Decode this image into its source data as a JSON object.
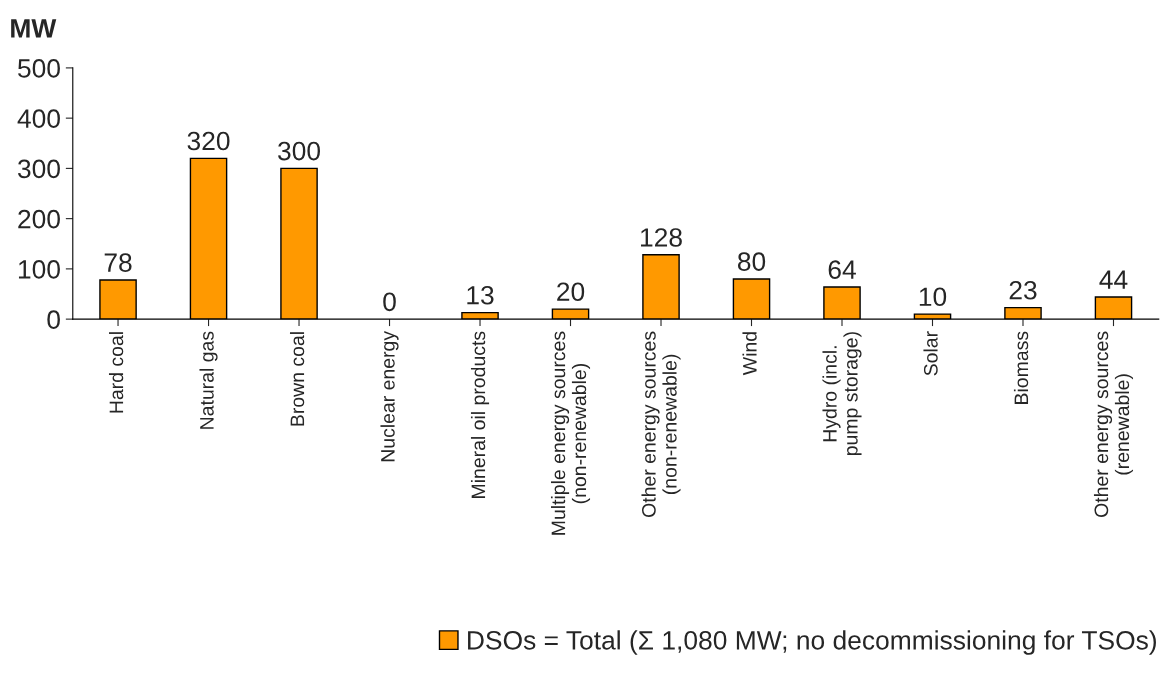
{
  "chart_data": {
    "type": "bar",
    "ylabel": "MW",
    "categories": [
      "Hard coal",
      "Natural gas",
      "Brown coal",
      "Nuclear energy",
      "Mineral oil products",
      "Multiple energy sources\n(non-renewable)",
      "Other energy sources\n(non-renewable)",
      "Wind",
      "Hydro (incl.\npump storage)",
      "Solar",
      "Biomass",
      "Other energy sources\n(renewable)"
    ],
    "series": [
      {
        "name": "DSOs = Total (Σ 1,080 MW; no decommissioning for TSOs)",
        "color": "#ff9900",
        "values": [
          78,
          320,
          300,
          0,
          13,
          20,
          128,
          80,
          64,
          10,
          23,
          44
        ]
      }
    ],
    "ylim": [
      0,
      500
    ],
    "yticks": [
      0,
      100,
      200,
      300,
      400,
      500
    ],
    "data_labels": true,
    "grid": false,
    "legend": "bottom right"
  }
}
